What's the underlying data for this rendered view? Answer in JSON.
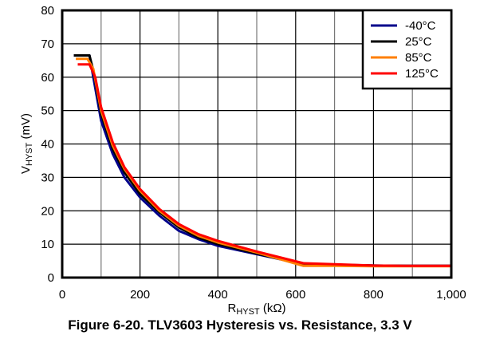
{
  "chart_data": {
    "type": "line",
    "title": "Figure 6-20. TLV3603 Hysteresis vs. Resistance, 3.3 V",
    "xlabel": {
      "main": "R",
      "sub": "HYST",
      "unit": " (kΩ)"
    },
    "ylabel": {
      "main": "V",
      "sub": "HYST",
      "unit": " (mV)"
    },
    "xlim": [
      0,
      1000
    ],
    "ylim": [
      0,
      80
    ],
    "xticks": [
      0,
      200,
      400,
      600,
      800,
      1000
    ],
    "xtick_labels": [
      "0",
      "200",
      "400",
      "600",
      "800",
      "1,000"
    ],
    "yticks": [
      0,
      10,
      20,
      30,
      40,
      50,
      60,
      70,
      80
    ],
    "ytick_labels": [
      "0",
      "10",
      "20",
      "30",
      "40",
      "50",
      "60",
      "70",
      "80"
    ],
    "grid": true,
    "legend_position": "top-right",
    "series": [
      {
        "name": "-40°C",
        "color": "#00008B",
        "x": [
          30,
          70,
          80,
          100,
          130,
          160,
          200,
          250,
          300,
          350,
          400,
          500,
          620,
          700,
          800,
          900,
          1000
        ],
        "y": [
          66.5,
          66.5,
          60,
          47,
          37,
          30,
          24,
          18.5,
          14,
          11.5,
          9.5,
          7,
          4,
          3.9,
          3.6,
          3.5,
          3.5
        ]
      },
      {
        "name": "25°C",
        "color": "#000000",
        "x": [
          30,
          70,
          80,
          100,
          130,
          160,
          200,
          250,
          300,
          350,
          400,
          500,
          620,
          700,
          800,
          900,
          1000
        ],
        "y": [
          66.5,
          66.5,
          62,
          49,
          38.5,
          31.5,
          25,
          19.5,
          15,
          12,
          10,
          7.2,
          4,
          3.8,
          3.6,
          3.5,
          3.5
        ]
      },
      {
        "name": "85°C",
        "color": "#FF7F00",
        "x": [
          35,
          65,
          80,
          100,
          130,
          160,
          200,
          250,
          300,
          350,
          400,
          500,
          620,
          700,
          800,
          900,
          1000
        ],
        "y": [
          65.5,
          65.5,
          62.5,
          50,
          39.5,
          32.5,
          26,
          20,
          15.5,
          12.5,
          10.5,
          7.5,
          3.5,
          3.5,
          3.4,
          3.4,
          3.4
        ]
      },
      {
        "name": "125°C",
        "color": "#FF0000",
        "x": [
          40,
          70,
          85,
          100,
          130,
          160,
          200,
          250,
          300,
          350,
          400,
          500,
          620,
          700,
          800,
          900,
          1000
        ],
        "y": [
          63.8,
          63.8,
          60,
          51,
          40.5,
          33,
          26.5,
          20.5,
          16,
          13,
          11,
          7.8,
          4.3,
          4,
          3.6,
          3.5,
          3.5
        ]
      }
    ]
  }
}
